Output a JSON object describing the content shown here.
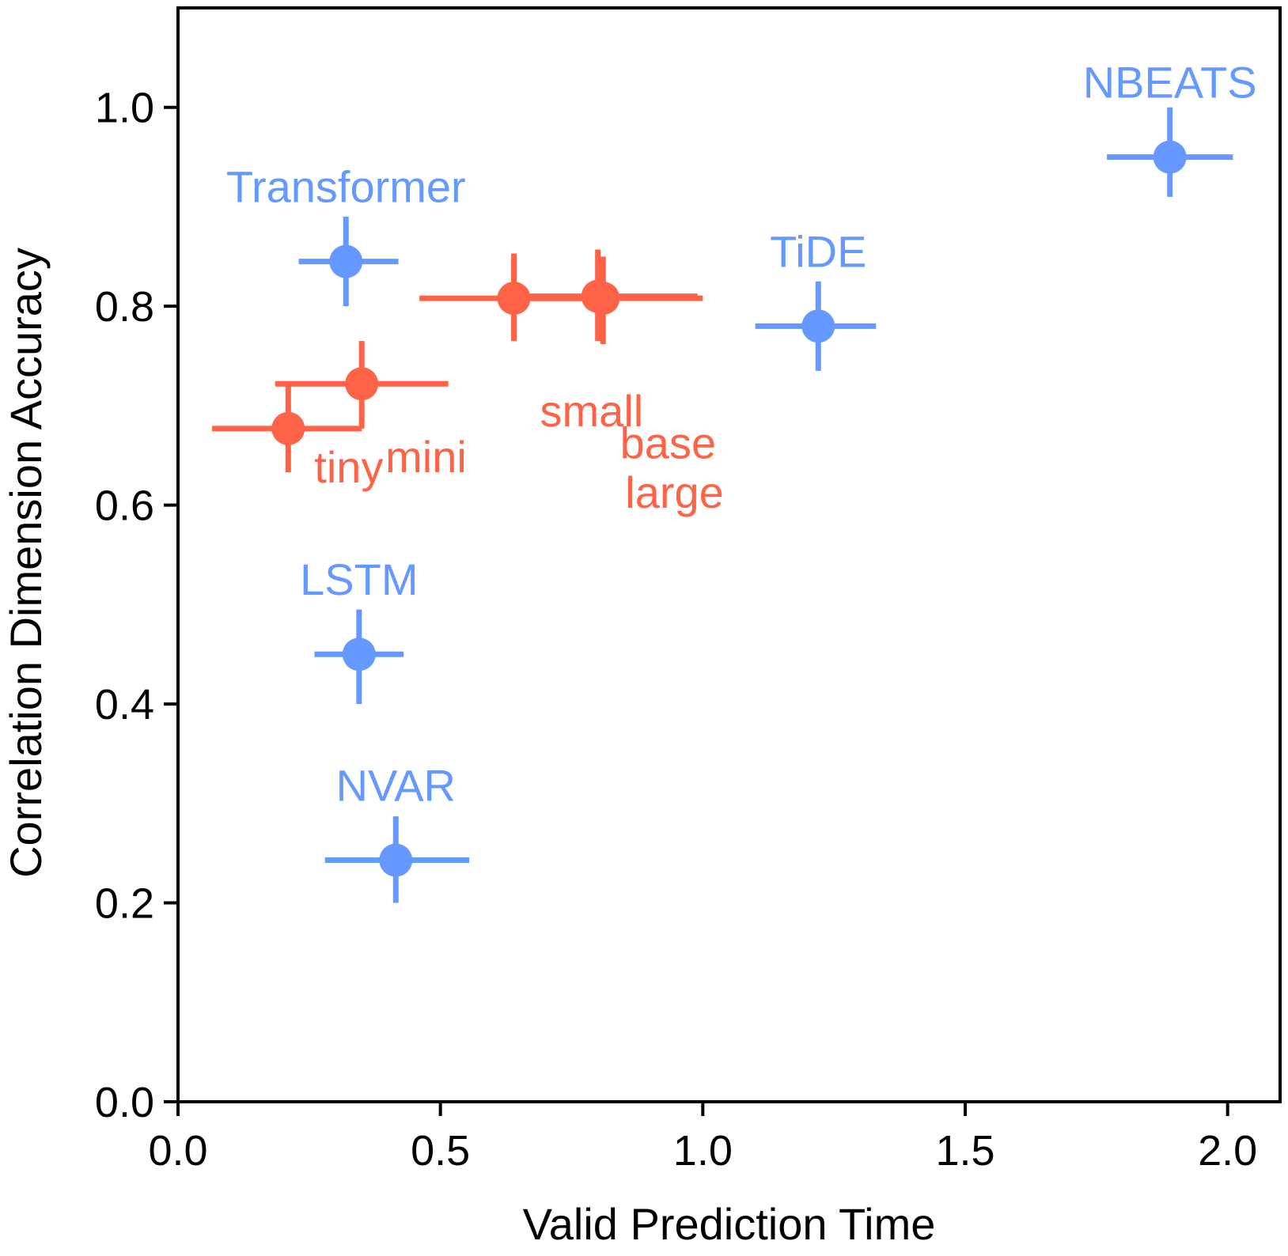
{
  "chart_data": {
    "type": "scatter",
    "xlabel": "Valid Prediction Time",
    "ylabel": "Correlation Dimension Accuracy",
    "xlim": [
      0.0,
      2.1
    ],
    "ylim": [
      0.0,
      1.1
    ],
    "x_ticks": [
      "0.0",
      "0.5",
      "1.0",
      "1.5",
      "2.0"
    ],
    "y_ticks": [
      "0.0",
      "0.2",
      "0.4",
      "0.6",
      "0.8",
      "1.0"
    ],
    "grid": false,
    "legend": "none",
    "colors": {
      "baseline": "#6699ff",
      "chronos": "#ff6347"
    },
    "series": [
      {
        "color": "#6699ff",
        "points": [
          {
            "label": "NBEATS",
            "x": 1.89,
            "y": 0.95,
            "xerr": [
              1.77,
              2.01
            ],
            "yerr": [
              0.91,
              1.0
            ]
          },
          {
            "label": "Transformer",
            "x": 0.32,
            "y": 0.845,
            "xerr": [
              0.23,
              0.42
            ],
            "yerr": [
              0.8,
              0.89
            ]
          },
          {
            "label": "TiDE",
            "x": 1.22,
            "y": 0.78,
            "xerr": [
              1.1,
              1.33
            ],
            "yerr": [
              0.735,
              0.825
            ]
          },
          {
            "label": "LSTM",
            "x": 0.345,
            "y": 0.45,
            "xerr": [
              0.26,
              0.43
            ],
            "yerr": [
              0.4,
              0.495
            ]
          },
          {
            "label": "NVAR",
            "x": 0.415,
            "y": 0.243,
            "xerr": [
              0.28,
              0.555
            ],
            "yerr": [
              0.2,
              0.287
            ]
          }
        ]
      },
      {
        "color": "#ff6347",
        "points": [
          {
            "label": "tiny",
            "x": 0.21,
            "y": 0.677,
            "xerr": [
              0.065,
              0.35
            ],
            "yerr": [
              0.633,
              0.72
            ]
          },
          {
            "label": "mini",
            "x": 0.35,
            "y": 0.722,
            "xerr": [
              0.185,
              0.515
            ],
            "yerr": [
              0.677,
              0.765
            ]
          },
          {
            "label": "small",
            "x": 0.64,
            "y": 0.808,
            "xerr": [
              0.46,
              0.8
            ],
            "yerr": [
              0.765,
              0.853
            ]
          },
          {
            "label": "base",
            "x": 0.8,
            "y": 0.81,
            "xerr": [
              0.64,
              0.99
            ],
            "yerr": [
              0.765,
              0.857
            ]
          },
          {
            "label": "large",
            "x": 0.81,
            "y": 0.808,
            "xerr": [
              0.64,
              1.0
            ],
            "yerr": [
              0.762,
              0.85
            ]
          }
        ]
      }
    ]
  }
}
